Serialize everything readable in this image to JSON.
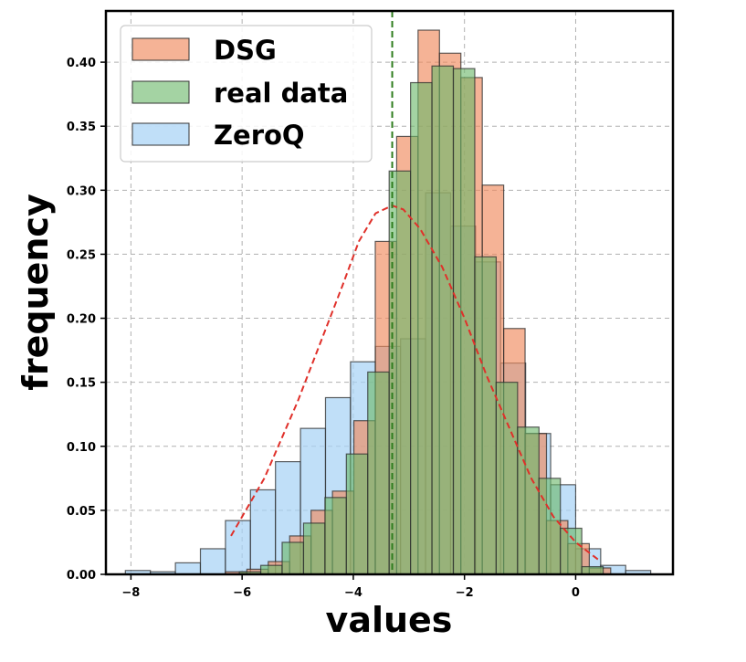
{
  "chart_data": {
    "type": "histogram",
    "title": "",
    "xlabel": "values",
    "ylabel": "frequency",
    "xlim": [
      -8.45,
      1.75
    ],
    "ylim": [
      0,
      0.44
    ],
    "xticks": [
      -8,
      -6,
      -4,
      -2,
      0
    ],
    "xtick_labels": [
      "−8",
      "−6",
      "−4",
      "−2",
      "0"
    ],
    "yticks": [
      0,
      0.05,
      0.1,
      0.15,
      0.2,
      0.25,
      0.3,
      0.35,
      0.4
    ],
    "ytick_labels": [
      "0.00",
      "0.05",
      "0.10",
      "0.15",
      "0.20",
      "0.25",
      "0.30",
      "0.35",
      "0.40"
    ],
    "grid": true,
    "legend_position": "top-left",
    "vline": {
      "x": -3.3,
      "color": "#2e7d1e",
      "style": "dashed"
    },
    "density_curve": {
      "color": "#e0302a",
      "style": "dashed",
      "x": [
        -6.2,
        -5.6,
        -5.0,
        -4.6,
        -4.2,
        -3.9,
        -3.6,
        -3.3,
        -3.1,
        -2.8,
        -2.4,
        -2.0,
        -1.6,
        -1.2,
        -0.8,
        -0.4,
        0.0,
        0.45
      ],
      "y": [
        0.03,
        0.075,
        0.135,
        0.18,
        0.225,
        0.26,
        0.282,
        0.288,
        0.285,
        0.27,
        0.24,
        0.2,
        0.155,
        0.115,
        0.075,
        0.045,
        0.025,
        0.01
      ]
    },
    "series": [
      {
        "name": "ZeroQ",
        "color": "#a8d2f5",
        "opacity": 0.72,
        "bin_width": 0.45,
        "x_start": [
          -8.1,
          -7.65,
          -7.2,
          -6.75,
          -6.3,
          -5.85,
          -5.4,
          -4.95,
          -4.5,
          -4.05,
          -3.6,
          -3.15,
          -2.7,
          -2.25,
          -1.8,
          -1.35,
          -0.9,
          -0.45,
          0.0,
          0.45,
          0.9
        ],
        "values": [
          0.003,
          0.002,
          0.009,
          0.02,
          0.042,
          0.066,
          0.088,
          0.114,
          0.138,
          0.166,
          0.178,
          0.184,
          0.298,
          0.272,
          0.244,
          0.165,
          0.11,
          0.07,
          0.02,
          0.007,
          0.003
        ]
      },
      {
        "name": "DSG",
        "color": "#f08a5e",
        "opacity": 0.65,
        "bin_width": 0.385,
        "x_start": [
          -6.3,
          -5.915,
          -5.53,
          -5.145,
          -4.76,
          -4.375,
          -3.99,
          -3.605,
          -3.22,
          -2.835,
          -2.45,
          -2.065,
          -1.68,
          -1.295,
          -0.91,
          -0.525,
          -0.14,
          0.245
        ],
        "values": [
          0.002,
          0.004,
          0.01,
          0.03,
          0.05,
          0.065,
          0.12,
          0.26,
          0.342,
          0.425,
          0.407,
          0.388,
          0.304,
          0.192,
          0.11,
          0.042,
          0.024,
          0.005
        ]
      },
      {
        "name": "real data",
        "color": "#6cb86a",
        "opacity": 0.62,
        "bin_width": 0.385,
        "x_start": [
          -6.05,
          -5.665,
          -5.28,
          -4.895,
          -4.51,
          -4.125,
          -3.74,
          -3.355,
          -2.97,
          -2.585,
          -2.2,
          -1.815,
          -1.43,
          -1.045,
          -0.66,
          -0.275,
          0.11
        ],
        "values": [
          0.002,
          0.007,
          0.025,
          0.04,
          0.06,
          0.094,
          0.158,
          0.315,
          0.384,
          0.397,
          0.395,
          0.248,
          0.15,
          0.115,
          0.075,
          0.036,
          0.006
        ]
      }
    ],
    "legend": [
      {
        "label": "DSG",
        "color": "#f08a5e"
      },
      {
        "label": "real data",
        "color": "#6cb86a"
      },
      {
        "label": "ZeroQ",
        "color": "#a8d2f5"
      }
    ]
  }
}
